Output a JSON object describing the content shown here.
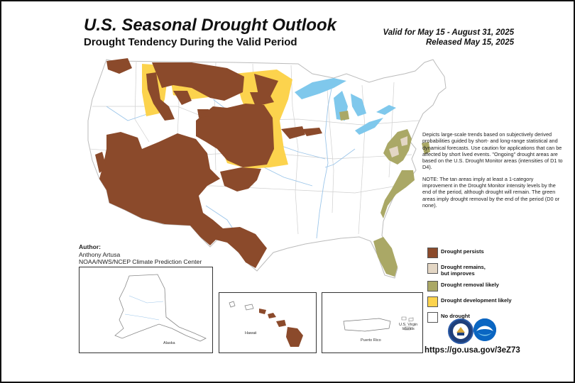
{
  "header": {
    "title": "U.S. Seasonal Drought Outlook",
    "subtitle": "Drought Tendency During the Valid Period",
    "valid_line": "Valid for May 15 - August 31, 2025",
    "released_line": "Released May 15, 2025"
  },
  "notes": {
    "description": "Depicts large-scale trends based on subjectively derived probabilities guided by short- and long-range statistical and dynamical forecasts. Use caution for applications that can be affected by short lived events. \"Ongoing\" drought areas are based on the U.S. Drought Monitor areas (intensities of D1 to D4).",
    "note": "NOTE: The tan areas imply at least a 1-category improvement in the Drought Monitor intensity levels by the end of the period, although drought will remain. The green areas imply drought removal by the end of the period (D0 or none)."
  },
  "legend": {
    "items": [
      {
        "label_line1": "Drought persists",
        "label_line2": "",
        "color": "#8b4a2b"
      },
      {
        "label_line1": "Drought remains,",
        "label_line2": "but improves",
        "color": "#e3d6c4"
      },
      {
        "label_line1": "Drought removal likely",
        "label_line2": "",
        "color": "#aaa866"
      },
      {
        "label_line1": "Drought development likely",
        "label_line2": "",
        "color": "#fcd34d"
      },
      {
        "label_line1": "No drought",
        "label_line2": "",
        "color": "#ffffff"
      }
    ]
  },
  "author": {
    "heading": "Author:",
    "name": "Anthony Artusa",
    "org": "NOAA/NWS/NCEP Climate Prediction Center"
  },
  "insets": {
    "alaska": "Alaska",
    "hawaii": "Hawaii",
    "puerto_rico": "Puerto Rico",
    "virgin_islands_line1": "U.S. Virgin",
    "virgin_islands_line2": "Islands"
  },
  "footer": {
    "url": "https://go.usa.gov/3eZ73"
  },
  "colors": {
    "persists": "#8b4a2b",
    "improves": "#e3d6c4",
    "removal": "#aaa866",
    "development": "#fcd34d",
    "water": "#7fc8ec",
    "rivers": "#9cc6ea",
    "borders": "#bbbbbb"
  },
  "icons": {
    "doc_logo": "department-of-commerce-seal-icon",
    "noaa_logo": "noaa-logo-icon"
  }
}
